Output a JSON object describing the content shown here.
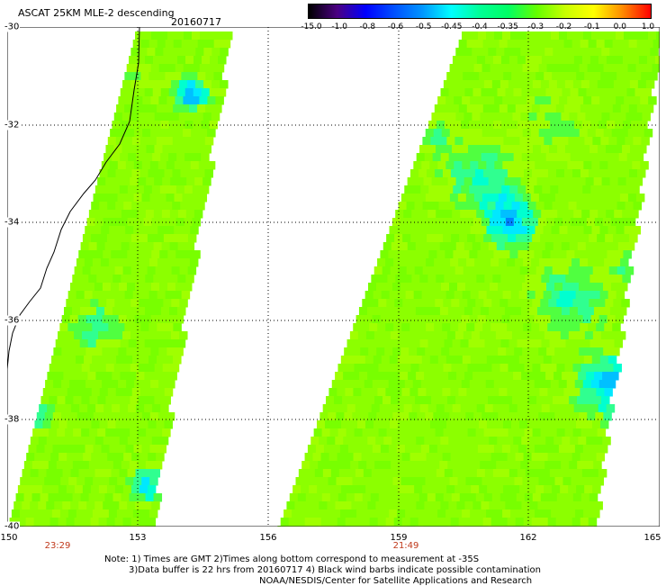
{
  "title": "ASCAT 25KM MLE-2 descending",
  "date": "20160717",
  "colorbar": {
    "labels": [
      "-15.0",
      "-1.0",
      "-0.8",
      "-0.6",
      "-0.5",
      "-0.45",
      "-0.4",
      "-0.35",
      "-0.3",
      "-0.2",
      "-0.1",
      "0.0",
      "1.0"
    ],
    "colors": [
      "#000000",
      "#4b0082",
      "#0000ff",
      "#0050ff",
      "#0096ff",
      "#00ffff",
      "#00ff96",
      "#00ff64",
      "#64ff00",
      "#c8ff00",
      "#ffff00",
      "#ff8c00",
      "#ff0000"
    ]
  },
  "lat_labels": [
    "-30",
    "-32",
    "-34",
    "-36",
    "-38",
    "-40"
  ],
  "lon_labels": [
    "150",
    "153",
    "156",
    "159",
    "162",
    "165"
  ],
  "times": [
    "23:29",
    "21:49"
  ],
  "notes": [
    "Note: 1) Times are GMT 2)Times along bottom correspond to measurement at -35S",
    "3)Data buffer is 22 hrs from 20160717 4) Black wind barbs indicate possible contamination",
    "NOAA/NESDIS/Center for Satellite Applications and Research"
  ],
  "colors": {
    "swath_green": "#64ff00",
    "swath_lightgreen": "#a0ff00",
    "swath_cyan": "#00ffd0",
    "swath_blue": "#0050ff",
    "land": "#ffffff",
    "time_text": "#c0391b"
  }
}
